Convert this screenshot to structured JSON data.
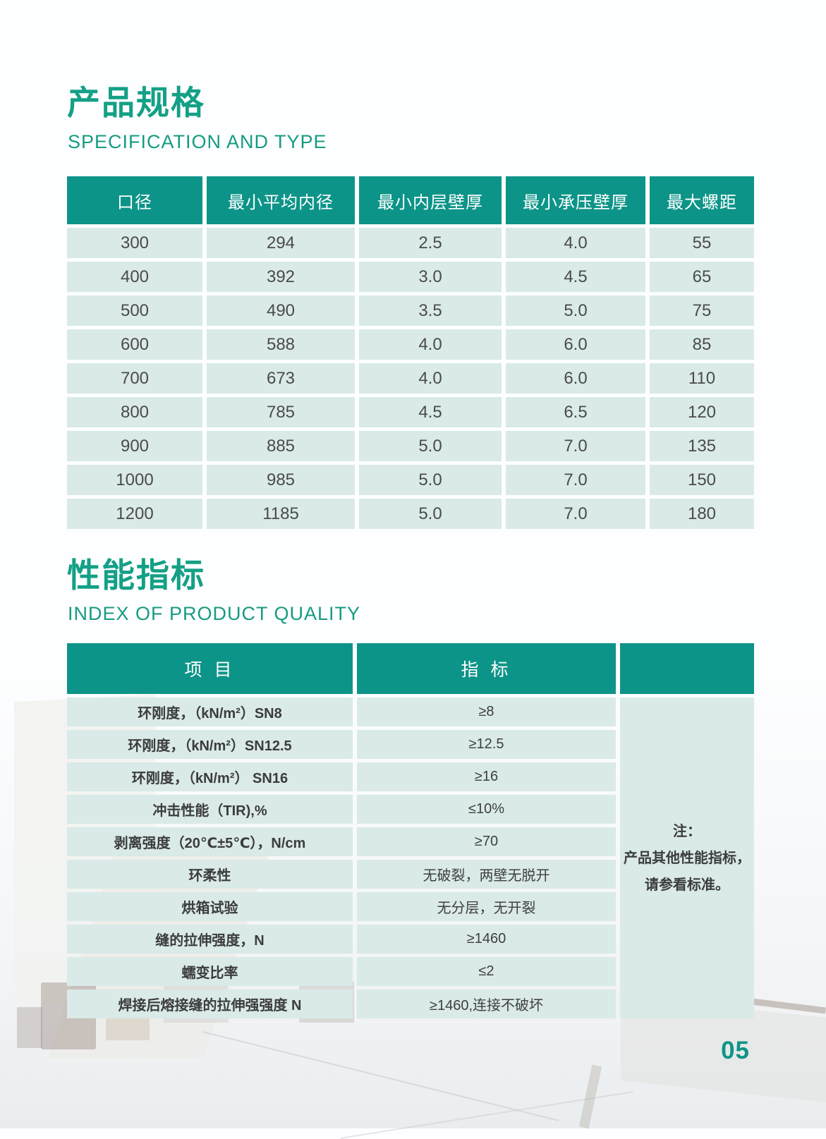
{
  "page": {
    "page_number": "05"
  },
  "colors": {
    "header_teal": "#0d9488",
    "title_green": "#13a086",
    "cell_bg": "#d9eae8",
    "cell_text": "#4b4b4b"
  },
  "section_spec": {
    "title": "产品规格",
    "subtitle": "SPECIFICATION AND TYPE"
  },
  "spec_table": {
    "headers": [
      "口径",
      "最小平均内径",
      "最小内层壁厚",
      "最小承压壁厚",
      "最大螺距"
    ],
    "rows": [
      [
        "300",
        "294",
        "2.5",
        "4.0",
        "55"
      ],
      [
        "400",
        "392",
        "3.0",
        "4.5",
        "65"
      ],
      [
        "500",
        "490",
        "3.5",
        "5.0",
        "75"
      ],
      [
        "600",
        "588",
        "4.0",
        "6.0",
        "85"
      ],
      [
        "700",
        "673",
        "4.0",
        "6.0",
        "110"
      ],
      [
        "800",
        "785",
        "4.5",
        "6.5",
        "120"
      ],
      [
        "900",
        "885",
        "5.0",
        "7.0",
        "135"
      ],
      [
        "1000",
        "985",
        "5.0",
        "7.0",
        "150"
      ],
      [
        "1200",
        "1185",
        "5.0",
        "7.0",
        "180"
      ]
    ]
  },
  "section_quality": {
    "title": "性能指标",
    "subtitle": "INDEX OF PRODUCT QUALITY"
  },
  "quality_table": {
    "item_header": "项 目",
    "value_header": "指 标",
    "rows": [
      {
        "item": "环刚度，（kN/m²）SN8",
        "value": "≥8"
      },
      {
        "item": "环刚度，（kN/m²）SN12.5",
        "value": "≥12.5"
      },
      {
        "item": "环刚度，（kN/m²） SN16",
        "value": "≥16"
      },
      {
        "item": "冲击性能（TIR),%",
        "value": "≤10%"
      },
      {
        "item": "剥离强度（20℃±5℃），N/cm",
        "value": "≥70"
      },
      {
        "item": "环柔性",
        "value": "无破裂，两壁无脱开"
      },
      {
        "item": "烘箱试验",
        "value": "无分层，无开裂"
      },
      {
        "item": "缝的拉伸强度，N",
        "value": "≥1460"
      },
      {
        "item": "蠕变比率",
        "value": "≤2"
      },
      {
        "item": "焊接后熔接缝的拉伸强强度 N",
        "value": "≥1460,连接不破坏"
      }
    ],
    "note": "注：\n产品其他性能指标，\n请参看标准。"
  }
}
